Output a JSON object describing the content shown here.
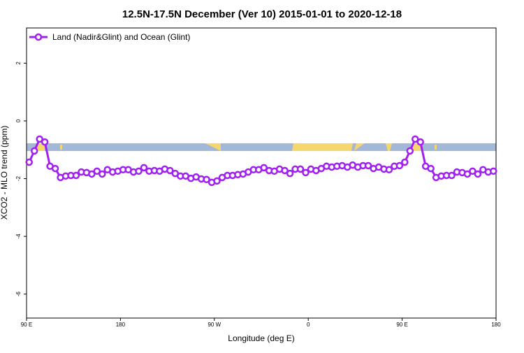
{
  "chart_data": {
    "type": "line",
    "title": "12.5N-17.5N December (Ver 10)   2015-01-01 to 2020-12-18",
    "x_label": "Longitude (deg E)",
    "y_label": "XCO2 - MLO trend (ppm)",
    "x": [
      92.5,
      97.5,
      102.5,
      107.5,
      112.5,
      117.5,
      122.5,
      127.5,
      132.5,
      137.5,
      142.5,
      147.5,
      152.5,
      157.5,
      162.5,
      167.5,
      172.5,
      177.5,
      182.5,
      187.5,
      192.5,
      197.5,
      202.5,
      207.5,
      212.5,
      217.5,
      222.5,
      227.5,
      232.5,
      237.5,
      242.5,
      247.5,
      252.5,
      257.5,
      262.5,
      267.5,
      272.5,
      277.5,
      282.5,
      287.5,
      292.5,
      297.5,
      302.5,
      307.5,
      312.5,
      317.5,
      322.5,
      327.5,
      332.5,
      337.5,
      342.5,
      347.5,
      352.5,
      357.5,
      362.5,
      367.5,
      372.5,
      377.5,
      382.5,
      387.5,
      392.5,
      397.5,
      402.5,
      407.5,
      412.5,
      417.5,
      422.5,
      427.5,
      432.5,
      437.5,
      442.5,
      447.5,
      452.5,
      457.5,
      462.5,
      467.5,
      472.5,
      477.5,
      482.5,
      487.5,
      492.5,
      497.5,
      502.5,
      507.5,
      512.5,
      517.5,
      522.5,
      527.5,
      532.5,
      537.5
    ],
    "series": [
      {
        "name": "Land (Nadir&Glint) and Ocean (Glint)",
        "color": "#a020f0",
        "values": [
          -1.43,
          -1.04,
          -0.63,
          -0.73,
          -1.57,
          -1.65,
          -1.96,
          -1.91,
          -1.89,
          -1.89,
          -1.77,
          -1.79,
          -1.84,
          -1.74,
          -1.84,
          -1.69,
          -1.77,
          -1.74,
          -1.69,
          -1.69,
          -1.77,
          -1.74,
          -1.62,
          -1.74,
          -1.72,
          -1.74,
          -1.67,
          -1.72,
          -1.82,
          -1.91,
          -1.91,
          -1.99,
          -1.94,
          -2.01,
          -2.03,
          -2.13,
          -2.08,
          -1.96,
          -1.89,
          -1.89,
          -1.86,
          -1.84,
          -1.77,
          -1.69,
          -1.69,
          -1.62,
          -1.72,
          -1.74,
          -1.67,
          -1.72,
          -1.82,
          -1.67,
          -1.67,
          -1.79,
          -1.67,
          -1.72,
          -1.65,
          -1.57,
          -1.6,
          -1.57,
          -1.55,
          -1.6,
          -1.53,
          -1.6,
          -1.55,
          -1.55,
          -1.65,
          -1.6,
          -1.67,
          -1.69,
          -1.57,
          -1.55,
          -1.43,
          -1.04,
          -0.63,
          -0.73,
          -1.57,
          -1.65,
          -1.96,
          -1.91,
          -1.89,
          -1.89,
          -1.77,
          -1.79,
          -1.84,
          -1.74,
          -1.84,
          -1.69,
          -1.77,
          -1.74
        ]
      }
    ],
    "xlim": [
      90,
      540
    ],
    "xticks": [
      {
        "value": 90,
        "label": "90 E"
      },
      180,
      {
        "value": 270,
        "label": "90 W"
      },
      {
        "value": 360,
        "label": "0"
      },
      {
        "value": 450,
        "label": "90 E"
      },
      {
        "value": 540,
        "label": "180"
      }
    ],
    "ylim": [
      -6.83,
      3.22
    ],
    "yticks": [
      -6,
      -4,
      -2,
      0,
      2
    ],
    "legend": "top-left"
  }
}
